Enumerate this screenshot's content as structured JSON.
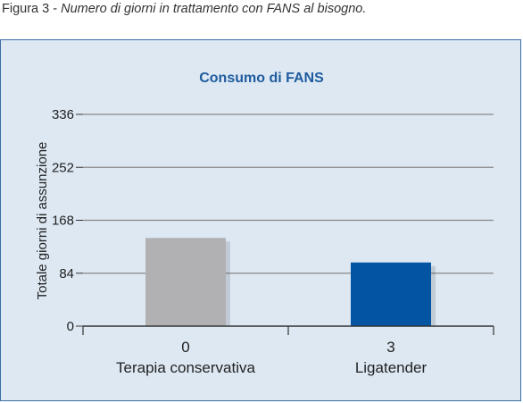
{
  "caption": {
    "label": "Figura 3 -",
    "text": "Numero di giorni in trattamento con FANS al bisogno."
  },
  "colors": {
    "panel_bg": "#dde8f3",
    "panel_border": "#3a6fa8",
    "title": "#1f5c9e",
    "bar_1": "#b1b1b3",
    "bar_2": "#0454a4",
    "grid": "#888888"
  },
  "chart_data": {
    "type": "bar",
    "title": "Consumo di FANS",
    "ylabel": "Totale giorni di assunzione",
    "xlabel": "",
    "ylim": [
      0,
      336
    ],
    "yticks": [
      0,
      84,
      168,
      252,
      336
    ],
    "grid": true,
    "categories": [
      "Terapia conservativa",
      "Ligatender"
    ],
    "category_codes": [
      "0",
      "3"
    ],
    "values": [
      140,
      101
    ]
  }
}
